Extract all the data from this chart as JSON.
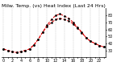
{
  "title": "Milw. Temp. (vs) Heat Index (Last 24 Hrs)",
  "x_labels": [
    "0",
    "",
    "2",
    "",
    "4",
    "",
    "6",
    "",
    "8",
    "",
    "10",
    "",
    "12",
    "",
    "14",
    "",
    "16",
    "",
    "18",
    "",
    "20",
    "",
    "22",
    ""
  ],
  "y_values": [
    32,
    30,
    28,
    27,
    28,
    30,
    32,
    38,
    46,
    56,
    64,
    70,
    74,
    76,
    74,
    72,
    68,
    62,
    55,
    48,
    43,
    40,
    37,
    35
  ],
  "heat_values": [
    32,
    30,
    28,
    27,
    28,
    30,
    32,
    38,
    46,
    56,
    66,
    74,
    80,
    82,
    79,
    76,
    70,
    63,
    56,
    48,
    43,
    40,
    37,
    35
  ],
  "ylim_min": 20,
  "ylim_max": 90,
  "y_ticks": [
    30,
    40,
    50,
    60,
    70,
    80
  ],
  "y_tick_labels": [
    "30",
    "40",
    "50",
    "60",
    "70",
    "80"
  ],
  "line_color": "#dd0000",
  "marker_color": "#000000",
  "bg_color": "#ffffff",
  "grid_color": "#bbbbbb",
  "title_fontsize": 4.5,
  "tick_fontsize": 3.5
}
